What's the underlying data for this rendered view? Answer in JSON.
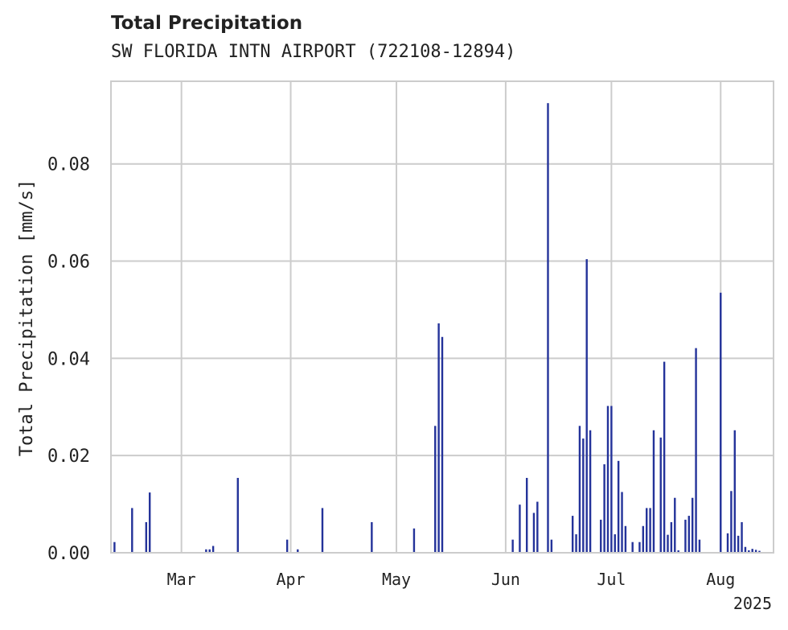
{
  "chart_data": {
    "type": "bar",
    "title": "Total Precipitation",
    "subtitle": "SW FLORIDA INTN AIRPORT (722108-12894)",
    "xlabel": "",
    "ylabel": "Total Precipitation [mm/s]",
    "year_label": "2025",
    "x_ticks": [
      "Mar",
      "Apr",
      "May",
      "Jun",
      "Jul",
      "Aug"
    ],
    "y_ticks": [
      "0.00",
      "0.02",
      "0.04",
      "0.06",
      "0.08"
    ],
    "ylim": [
      0,
      0.097
    ],
    "grid": true,
    "color": "#24339a",
    "x": [
      "2025-02-10",
      "2025-02-15",
      "2025-02-19",
      "2025-02-20",
      "2025-03-08",
      "2025-03-09",
      "2025-03-10",
      "2025-03-17",
      "2025-03-31",
      "2025-04-03",
      "2025-04-10",
      "2025-04-24",
      "2025-05-06",
      "2025-05-12",
      "2025-05-13",
      "2025-05-14",
      "2025-06-03",
      "2025-06-05",
      "2025-06-07",
      "2025-06-09",
      "2025-06-10",
      "2025-06-13",
      "2025-06-14",
      "2025-06-20",
      "2025-06-21",
      "2025-06-22",
      "2025-06-23",
      "2025-06-24",
      "2025-06-25",
      "2025-06-28",
      "2025-06-29",
      "2025-06-30",
      "2025-07-01",
      "2025-07-02",
      "2025-07-03",
      "2025-07-04",
      "2025-07-05",
      "2025-07-07",
      "2025-07-09",
      "2025-07-10",
      "2025-07-11",
      "2025-07-12",
      "2025-07-13",
      "2025-07-15",
      "2025-07-16",
      "2025-07-17",
      "2025-07-18",
      "2025-07-19",
      "2025-07-20",
      "2025-07-22",
      "2025-07-23",
      "2025-07-24",
      "2025-07-25",
      "2025-07-26",
      "2025-08-01",
      "2025-08-03",
      "2025-08-04",
      "2025-08-05",
      "2025-08-06",
      "2025-08-07",
      "2025-08-08",
      "2025-08-09",
      "2025-08-10",
      "2025-08-11",
      "2025-08-12"
    ],
    "values": [
      0.0022,
      0.0092,
      0.0063,
      0.0124,
      0.0007,
      0.0007,
      0.0014,
      0.0154,
      0.0027,
      0.0007,
      0.0092,
      0.0063,
      0.005,
      0.0261,
      0.0472,
      0.0444,
      0.0027,
      0.0099,
      0.0154,
      0.0082,
      0.0105,
      0.0925,
      0.0027,
      0.0076,
      0.0038,
      0.0261,
      0.0235,
      0.0604,
      0.0252,
      0.0068,
      0.0182,
      0.0302,
      0.0302,
      0.0038,
      0.0189,
      0.0125,
      0.0055,
      0.0022,
      0.0022,
      0.0055,
      0.0092,
      0.0092,
      0.0252,
      0.0237,
      0.0393,
      0.0037,
      0.0063,
      0.0113,
      0.0005,
      0.0068,
      0.0076,
      0.0113,
      0.0421,
      0.0027,
      0.0535,
      0.004,
      0.0127,
      0.0252,
      0.0035,
      0.0063,
      0.0012,
      0.0005,
      0.0008,
      0.0006,
      0.0004
    ]
  }
}
